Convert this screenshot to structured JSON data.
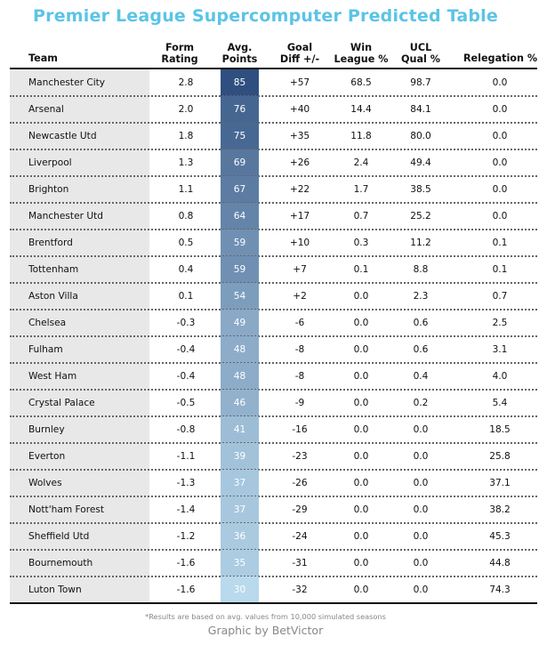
{
  "title": "Premier League Supercomputer Predicted Table",
  "headers": {
    "team": "Team",
    "form_line1": "Form",
    "form_line2": "Rating",
    "pts_line1": "Avg.",
    "pts_line2": "Points",
    "gd_line1": "Goal",
    "gd_line2": "Diff +/-",
    "win_line1": "Win",
    "win_line2": "League %",
    "ucl_line1": "UCL",
    "ucl_line2": "Qual %",
    "rel": "Relegation %"
  },
  "colors": {
    "title": "#5bc4e6",
    "points_scale_low": "#b9d9ec",
    "points_scale_high": "#2f4f80",
    "team_column_bg": "#e8e8e8"
  },
  "chart_data": {
    "type": "table",
    "columns": [
      "Team",
      "Form Rating",
      "Avg. Points",
      "Goal Diff +/-",
      "Win League %",
      "UCL Qual %",
      "Relegation %"
    ],
    "rows": [
      {
        "team": "Manchester City",
        "form": "2.8",
        "pts": "85",
        "gd": "+57",
        "win": "68.5",
        "ucl": "98.7",
        "rel": "0.0"
      },
      {
        "team": "Arsenal",
        "form": "2.0",
        "pts": "76",
        "gd": "+40",
        "win": "14.4",
        "ucl": "84.1",
        "rel": "0.0"
      },
      {
        "team": "Newcastle Utd",
        "form": "1.8",
        "pts": "75",
        "gd": "+35",
        "win": "11.8",
        "ucl": "80.0",
        "rel": "0.0"
      },
      {
        "team": "Liverpool",
        "form": "1.3",
        "pts": "69",
        "gd": "+26",
        "win": "2.4",
        "ucl": "49.4",
        "rel": "0.0"
      },
      {
        "team": "Brighton",
        "form": "1.1",
        "pts": "67",
        "gd": "+22",
        "win": "1.7",
        "ucl": "38.5",
        "rel": "0.0"
      },
      {
        "team": "Manchester Utd",
        "form": "0.8",
        "pts": "64",
        "gd": "+17",
        "win": "0.7",
        "ucl": "25.2",
        "rel": "0.0"
      },
      {
        "team": "Brentford",
        "form": "0.5",
        "pts": "59",
        "gd": "+10",
        "win": "0.3",
        "ucl": "11.2",
        "rel": "0.1"
      },
      {
        "team": "Tottenham",
        "form": "0.4",
        "pts": "59",
        "gd": "+7",
        "win": "0.1",
        "ucl": "8.8",
        "rel": "0.1"
      },
      {
        "team": "Aston Villa",
        "form": "0.1",
        "pts": "54",
        "gd": "+2",
        "win": "0.0",
        "ucl": "2.3",
        "rel": "0.7"
      },
      {
        "team": "Chelsea",
        "form": "-0.3",
        "pts": "49",
        "gd": "-6",
        "win": "0.0",
        "ucl": "0.6",
        "rel": "2.5"
      },
      {
        "team": "Fulham",
        "form": "-0.4",
        "pts": "48",
        "gd": "-8",
        "win": "0.0",
        "ucl": "0.6",
        "rel": "3.1"
      },
      {
        "team": "West Ham",
        "form": "-0.4",
        "pts": "48",
        "gd": "-8",
        "win": "0.0",
        "ucl": "0.4",
        "rel": "4.0"
      },
      {
        "team": "Crystal Palace",
        "form": "-0.5",
        "pts": "46",
        "gd": "-9",
        "win": "0.0",
        "ucl": "0.2",
        "rel": "5.4"
      },
      {
        "team": "Burnley",
        "form": "-0.8",
        "pts": "41",
        "gd": "-16",
        "win": "0.0",
        "ucl": "0.0",
        "rel": "18.5"
      },
      {
        "team": "Everton",
        "form": "-1.1",
        "pts": "39",
        "gd": "-23",
        "win": "0.0",
        "ucl": "0.0",
        "rel": "25.8"
      },
      {
        "team": "Wolves",
        "form": "-1.3",
        "pts": "37",
        "gd": "-26",
        "win": "0.0",
        "ucl": "0.0",
        "rel": "37.1"
      },
      {
        "team": "Nott'ham Forest",
        "form": "-1.4",
        "pts": "37",
        "gd": "-29",
        "win": "0.0",
        "ucl": "0.0",
        "rel": "38.2"
      },
      {
        "team": "Sheffield Utd",
        "form": "-1.2",
        "pts": "36",
        "gd": "-24",
        "win": "0.0",
        "ucl": "0.0",
        "rel": "45.3"
      },
      {
        "team": "Bournemouth",
        "form": "-1.6",
        "pts": "35",
        "gd": "-31",
        "win": "0.0",
        "ucl": "0.0",
        "rel": "44.8"
      },
      {
        "team": "Luton Town",
        "form": "-1.6",
        "pts": "30",
        "gd": "-32",
        "win": "0.0",
        "ucl": "0.0",
        "rel": "74.3"
      }
    ]
  },
  "footnote": "*Results are based on avg. values from 10,000 simulated seasons",
  "credit": "Graphic by BetVictor"
}
